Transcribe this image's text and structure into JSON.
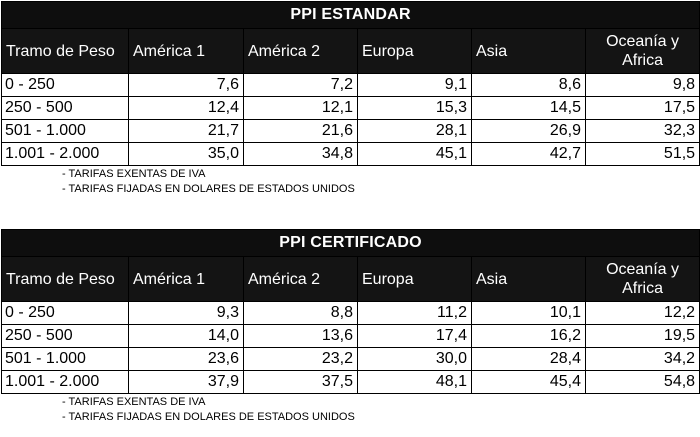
{
  "tables": [
    {
      "title": "PPI ESTANDAR",
      "headers": [
        "Tramo de Peso",
        "América 1",
        "América 2",
        "Europa",
        "Asia",
        "Oceanía y Africa"
      ],
      "rows": [
        [
          "0 - 250",
          "7,6",
          "7,2",
          "9,1",
          "8,6",
          "9,8"
        ],
        [
          "250 - 500",
          "12,4",
          "12,1",
          "15,3",
          "14,5",
          "17,5"
        ],
        [
          "501 - 1.000",
          "21,7",
          "21,6",
          "28,1",
          "26,9",
          "32,3"
        ],
        [
          "1.001 - 2.000",
          "35,0",
          "34,8",
          "45,1",
          "42,7",
          "51,5"
        ]
      ],
      "notes": [
        "- TARIFAS EXENTAS DE IVA",
        "- TARIFAS FIJADAS EN DOLARES DE ESTADOS UNIDOS"
      ]
    },
    {
      "title": "PPI CERTIFICADO",
      "headers": [
        "Tramo de Peso",
        "América 1",
        "América 2",
        "Europa",
        "Asia",
        "Oceanía y Africa"
      ],
      "rows": [
        [
          "0 - 250",
          "9,3",
          "8,8",
          "11,2",
          "10,1",
          "12,2"
        ],
        [
          "250 - 500",
          "14,0",
          "13,6",
          "17,4",
          "16,2",
          "19,5"
        ],
        [
          "501 - 1.000",
          "23,6",
          "23,2",
          "30,0",
          "28,4",
          "34,2"
        ],
        [
          "1.001 - 2.000",
          "37,9",
          "37,5",
          "48,1",
          "45,4",
          "54,8"
        ]
      ],
      "notes": [
        "- TARIFAS EXENTAS DE IVA",
        "- TARIFAS FIJADAS EN DOLARES DE ESTADOS UNIDOS"
      ]
    }
  ]
}
